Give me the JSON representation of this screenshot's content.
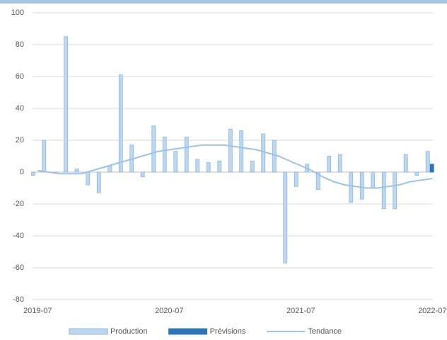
{
  "chart_data": {
    "type": "bar",
    "categories": [
      "2019-07",
      null,
      null,
      null,
      null,
      null,
      null,
      null,
      null,
      null,
      null,
      null,
      "2020-07",
      null,
      null,
      null,
      null,
      null,
      null,
      null,
      null,
      null,
      null,
      null,
      "2021-07",
      null,
      null,
      null,
      null,
      null,
      null,
      null,
      null,
      null,
      null,
      null,
      "2022-07"
    ],
    "series": [
      {
        "name": "Production",
        "type": "bar",
        "color": "#bdd7ee",
        "values": [
          -2,
          20,
          0,
          85,
          2,
          -8,
          -13,
          4,
          61,
          17,
          -3,
          29,
          22,
          13,
          22,
          8,
          6,
          7,
          27,
          26,
          7,
          24,
          20,
          -57,
          -9,
          5,
          -11,
          10,
          11,
          -19,
          -17,
          -10,
          -23,
          -23,
          11,
          -2,
          13
        ]
      },
      {
        "name": "Prévisions",
        "type": "bar",
        "color": "#2e75b6",
        "values": [
          null,
          null,
          null,
          null,
          null,
          null,
          null,
          null,
          null,
          null,
          null,
          null,
          null,
          null,
          null,
          null,
          null,
          null,
          null,
          null,
          null,
          null,
          null,
          null,
          null,
          null,
          null,
          null,
          null,
          null,
          null,
          null,
          null,
          null,
          null,
          null,
          5
        ]
      },
      {
        "name": "Tendance",
        "type": "line",
        "color": "#9dc3e6",
        "values": [
          1,
          0,
          -1,
          -1,
          -1,
          1,
          3,
          5,
          7,
          9,
          11,
          13,
          14,
          15,
          16,
          17,
          17,
          17,
          16,
          15,
          14,
          12,
          10,
          7,
          4,
          1,
          -3,
          -6,
          -8,
          -9,
          -10,
          -10,
          -9,
          -8,
          -6,
          -5,
          -4
        ]
      }
    ],
    "ylim": [
      -80,
      100
    ],
    "yticks": [
      -80,
      -60,
      -40,
      -20,
      0,
      20,
      40,
      60,
      80,
      100
    ],
    "grid": true,
    "legend": "bottom"
  }
}
